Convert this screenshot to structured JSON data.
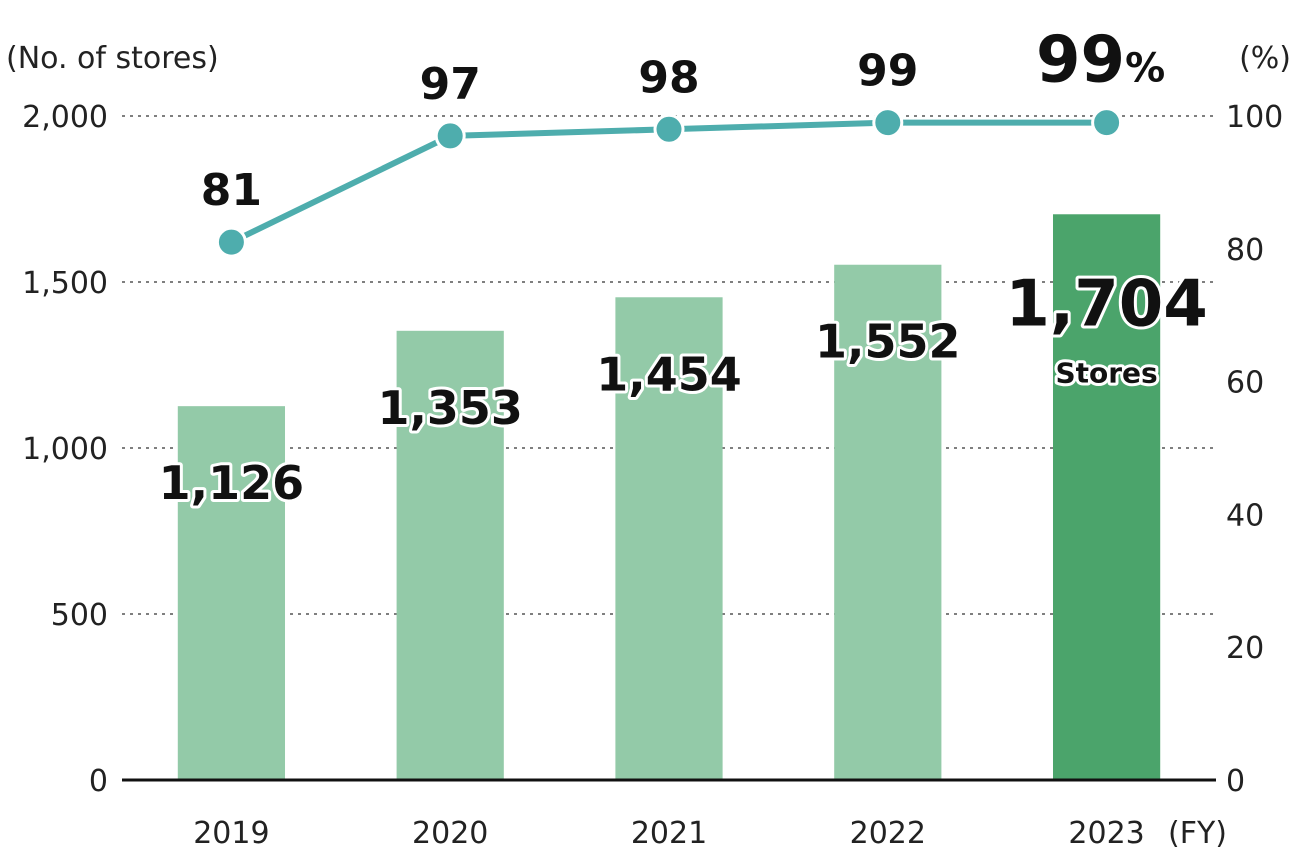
{
  "chart_data": {
    "type": "bar",
    "categories": [
      "2019",
      "2020",
      "2021",
      "2022",
      "2023"
    ],
    "xlabel": "(FY)",
    "ylabel": "(No. of stores)",
    "y2label": "(%)",
    "ylim": [
      0,
      2000
    ],
    "y2lim": [
      0,
      100
    ],
    "yticks": [
      "0",
      "500",
      "1,000",
      "1,500",
      "2,000"
    ],
    "y2ticks": [
      "0",
      "20",
      "40",
      "60",
      "80",
      "100"
    ],
    "grid": true,
    "series": [
      {
        "type": "bar",
        "axis": "left",
        "values": [
          1126,
          1353,
          1454,
          1552,
          1704
        ],
        "labels": [
          "1,126",
          "1,353",
          "1,454",
          "1,552",
          "1,704"
        ],
        "highlight_unit": "Stores"
      },
      {
        "type": "line",
        "axis": "right",
        "values": [
          81,
          97,
          98,
          99,
          99
        ],
        "labels": [
          "81",
          "97",
          "98",
          "99",
          "99"
        ],
        "highlight_unit": "%"
      }
    ],
    "colors": {
      "bar": "#93caa8",
      "bar_highlight": "#4ba46b",
      "line": "#4eadad",
      "grid": "#555555",
      "axis": "#111111"
    }
  }
}
